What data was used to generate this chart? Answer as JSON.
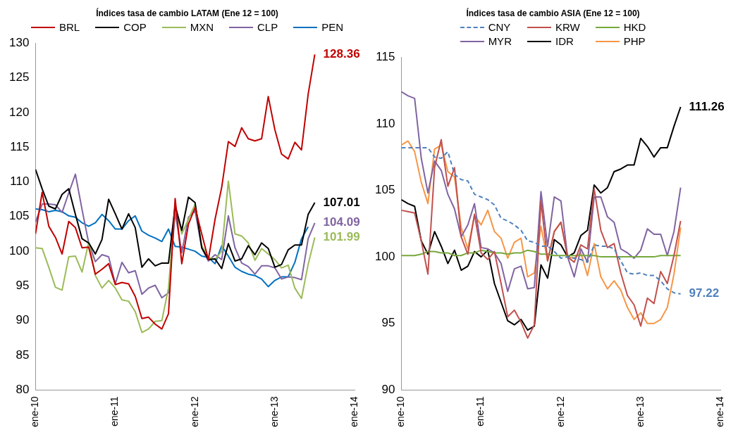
{
  "chart_data": [
    {
      "type": "line",
      "title": "Índices tasa de cambio LATAM (Ene 12 = 100)",
      "legend": "top",
      "marker": "none",
      "line_style": "solid",
      "grid": false,
      "x": [
        "2010-01",
        "2010-02",
        "2010-03",
        "2010-04",
        "2010-05",
        "2010-06",
        "2010-07",
        "2010-08",
        "2010-09",
        "2010-10",
        "2010-11",
        "2010-12",
        "2011-01",
        "2011-02",
        "2011-03",
        "2011-04",
        "2011-05",
        "2011-06",
        "2011-07",
        "2011-08",
        "2011-09",
        "2011-10",
        "2011-11",
        "2011-12",
        "2012-01",
        "2012-02",
        "2012-03",
        "2012-04",
        "2012-05",
        "2012-06",
        "2012-07",
        "2012-08",
        "2012-09",
        "2012-10",
        "2012-11",
        "2012-12",
        "2013-01",
        "2013-02",
        "2013-03",
        "2013-04",
        "2013-05",
        "2013-06",
        "2013-07"
      ],
      "xlim": [
        "2010-01",
        "2014-01"
      ],
      "xticks": [
        {
          "value": "2010-01",
          "label": "ene-10"
        },
        {
          "value": "2011-01",
          "label": "ene-11"
        },
        {
          "value": "2012-01",
          "label": "ene-12"
        },
        {
          "value": "2013-01",
          "label": "ene-13"
        },
        {
          "value": "2014-01",
          "label": "ene-14"
        }
      ],
      "ylim": [
        80,
        130
      ],
      "yticks": [
        80,
        85,
        90,
        95,
        100,
        105,
        110,
        115,
        120,
        125,
        130
      ],
      "series": [
        {
          "name": "BRL",
          "color": "#c00000",
          "values": [
            102.5,
            108.5,
            103.6,
            102,
            99.6,
            104.3,
            103.4,
            100.5,
            100.6,
            96.7,
            97.4,
            98.2,
            95.2,
            95.5,
            95.3,
            93.5,
            90.3,
            90.5,
            89.5,
            88.8,
            91,
            107.6,
            98.2,
            103.9,
            106.3,
            102.5,
            98.8,
            104.6,
            109.2,
            115.8,
            115.1,
            117.8,
            116.2,
            115.9,
            116.2,
            122.3,
            117.5,
            114,
            113.3,
            115.7,
            114.6,
            122.6,
            128.36
          ]
        },
        {
          "name": "COP",
          "color": "#000000",
          "values": [
            111.8,
            109,
            106.5,
            106.1,
            108.2,
            109,
            105.3,
            101.8,
            101.2,
            99.6,
            101.7,
            107.5,
            105.4,
            103.2,
            105.4,
            103.4,
            97.7,
            98.9,
            97.9,
            98.3,
            98.3,
            106.6,
            103,
            107.8,
            107,
            100.5,
            98.8,
            98.9,
            97.5,
            101.1,
            98.6,
            98.9,
            100.8,
            99.5,
            101.2,
            100.4,
            97.7,
            98.1,
            100.2,
            100.9,
            100.9,
            105.3,
            107.01
          ]
        },
        {
          "name": "MXN",
          "color": "#9bbb59",
          "values": [
            100.5,
            100.4,
            97.7,
            94.8,
            94.4,
            99.2,
            99.3,
            97,
            101.3,
            96.5,
            94.7,
            95.8,
            94.7,
            93,
            92.8,
            91.3,
            88.3,
            88.8,
            89.9,
            90,
            94.7,
            106.6,
            102.5,
            104.6,
            106.8,
            100.8,
            99.1,
            98.8,
            100,
            110.1,
            102.5,
            102.2,
            101.2,
            98.7,
            100.4,
            99.6,
            98.8,
            97.6,
            98,
            94.7,
            93.2,
            98.1,
            101.99
          ]
        },
        {
          "name": "CLP",
          "color": "#8064a2",
          "values": [
            104.2,
            106.8,
            106.8,
            106.7,
            105.6,
            108.4,
            111.1,
            106,
            101.2,
            98.5,
            99.5,
            99.2,
            95.3,
            98.4,
            96.9,
            97.2,
            93.8,
            94.7,
            95.1,
            93.3,
            94,
            105.6,
            99.8,
            104.9,
            105.8,
            100.5,
            98.6,
            99.5,
            98.8,
            105.1,
            100.5,
            98.3,
            97.8,
            96.7,
            97.9,
            97.9,
            97.6,
            96,
            96.3,
            96.2,
            95.9,
            101.8,
            104.09
          ]
        },
        {
          "name": "PEN",
          "color": "#0070c0",
          "values": [
            106.1,
            106,
            105.7,
            105.9,
            105.7,
            105.1,
            104.9,
            104.1,
            103.6,
            104.1,
            105.3,
            104.4,
            103.2,
            103.2,
            104.4,
            105.1,
            102.9,
            102.3,
            101.9,
            101.4,
            103.2,
            100.7,
            100.6,
            100.3,
            100,
            99.3,
            99.1,
            98.2,
            100.8,
            99.3,
            97.7,
            97.1,
            96.7,
            96.5,
            96,
            94.9,
            95.8,
            96.3,
            96.3,
            98.4,
            101.8,
            103.5,
            null
          ]
        }
      ],
      "annotations": [
        {
          "text": "128.36",
          "x": "2013-07",
          "y": 128.36
        },
        {
          "text": "107.01",
          "x": "2013-07",
          "y": 107.01
        },
        {
          "text": "104.09",
          "x": "2013-07",
          "y": 104.09
        },
        {
          "text": "101.99",
          "x": "2013-07",
          "y": 101.99
        }
      ]
    },
    {
      "type": "line",
      "title": "Índices tasa de cambio ASIA (Ene 12 = 100)",
      "legend": "top",
      "marker": "none",
      "line_style": "solid",
      "grid": false,
      "x": [
        "2010-01",
        "2010-02",
        "2010-03",
        "2010-04",
        "2010-05",
        "2010-06",
        "2010-07",
        "2010-08",
        "2010-09",
        "2010-10",
        "2010-11",
        "2010-12",
        "2011-01",
        "2011-02",
        "2011-03",
        "2011-04",
        "2011-05",
        "2011-06",
        "2011-07",
        "2011-08",
        "2011-09",
        "2011-10",
        "2011-11",
        "2011-12",
        "2012-01",
        "2012-02",
        "2012-03",
        "2012-04",
        "2012-05",
        "2012-06",
        "2012-07",
        "2012-08",
        "2012-09",
        "2012-10",
        "2012-11",
        "2012-12",
        "2013-01",
        "2013-02",
        "2013-03",
        "2013-04",
        "2013-05",
        "2013-06",
        "2013-07"
      ],
      "xlim": [
        "2010-01",
        "2014-01"
      ],
      "xticks": [
        {
          "value": "2010-01",
          "label": "ene-10"
        },
        {
          "value": "2011-01",
          "label": "ene-11"
        },
        {
          "value": "2012-01",
          "label": "ene-12"
        },
        {
          "value": "2013-01",
          "label": "ene-13"
        },
        {
          "value": "2014-01",
          "label": "ene-14"
        }
      ],
      "ylim": [
        90,
        115
      ],
      "yticks": [
        90,
        95,
        100,
        105,
        110,
        115
      ],
      "series": [
        {
          "name": "CNY",
          "color": "#4f81bd",
          "line_style": "dashed",
          "values": [
            108.2,
            108.2,
            108.2,
            108.2,
            108.2,
            107.5,
            107.4,
            107.9,
            106.2,
            105.8,
            105.7,
            104.7,
            104.5,
            104.3,
            103.9,
            102.9,
            102.7,
            102.4,
            102,
            101.2,
            101.1,
            100.8,
            100.8,
            100.4,
            99.9,
            100,
            99.9,
            99.8,
            99.6,
            100.9,
            100.8,
            100.8,
            100.6,
            99.7,
            98.8,
            98.7,
            98.8,
            98.6,
            98.6,
            98.2,
            97.6,
            97.3,
            97.22
          ]
        },
        {
          "name": "KRW",
          "color": "#c0504d",
          "values": [
            103.5,
            103.4,
            103.3,
            101.2,
            98.7,
            106.7,
            108.8,
            105.3,
            106.7,
            101.5,
            100.2,
            103.2,
            100.3,
            99.8,
            100.4,
            98,
            95.5,
            96,
            95.1,
            93.9,
            94.9,
            104.2,
            99.7,
            101.9,
            102.6,
            100,
            99.6,
            100.9,
            100.6,
            105.1,
            102,
            100.7,
            101,
            98.8,
            97.1,
            96.4,
            94.8,
            96.9,
            96.5,
            98.9,
            98,
            100.1,
            102.7
          ]
        },
        {
          "name": "HKD",
          "color": "#77a83c",
          "values": [
            100.1,
            100.1,
            100.1,
            100.2,
            100.4,
            100.4,
            100.3,
            100.3,
            100.1,
            100.1,
            100.3,
            100.3,
            100.5,
            100.4,
            100.3,
            100.3,
            100.2,
            100.3,
            100.3,
            100.5,
            100.4,
            100.2,
            100.2,
            100.1,
            100.1,
            100.1,
            100.1,
            100.1,
            100.1,
            100.1,
            100,
            100,
            100,
            100,
            100,
            100,
            100,
            100,
            100,
            100.1,
            100.1,
            100.1,
            100.1
          ]
        },
        {
          "name": "MYR",
          "color": "#8064a2",
          "values": [
            112.4,
            112.1,
            111.9,
            107.4,
            104.8,
            107.2,
            106.5,
            104.7,
            103.6,
            101.5,
            102.4,
            104,
            100.7,
            100.6,
            100.3,
            99.5,
            97.4,
            99.1,
            99.3,
            97.6,
            97.7,
            104.9,
            100.8,
            104.5,
            104.2,
            100,
            98.5,
            100.6,
            99.6,
            104.5,
            104.5,
            103,
            102.6,
            100.6,
            100.3,
            99.9,
            100.5,
            102.1,
            101.7,
            101.7,
            100.1,
            101.9,
            105.2
          ]
        },
        {
          "name": "IDR",
          "color": "#000000",
          "values": [
            104.3,
            104,
            103.8,
            101.2,
            100.2,
            101.9,
            100.8,
            99.5,
            100.5,
            99,
            99.3,
            100.4,
            100,
            100.5,
            98,
            96.6,
            95.2,
            94.9,
            95.3,
            94.5,
            94.8,
            99.4,
            98.4,
            101.3,
            100.9,
            100,
            100.3,
            101.6,
            102,
            105.4,
            104.8,
            105.2,
            106.4,
            106.6,
            106.9,
            106.9,
            108.9,
            108.3,
            107.5,
            108.2,
            108.2,
            109.8,
            111.26
          ]
        },
        {
          "name": "PHP",
          "color": "#f79646",
          "values": [
            108.4,
            108.7,
            107.9,
            105.6,
            104,
            108.1,
            108.4,
            106.4,
            106,
            102.2,
            100.6,
            103.1,
            102.4,
            103.5,
            101.9,
            101.4,
            99.9,
            101.1,
            101.4,
            98.5,
            98.8,
            102.3,
            99.7,
            101.9,
            102.6,
            100,
            99.9,
            100.3,
            98.6,
            101,
            98.5,
            97.6,
            98.2,
            97.5,
            96.2,
            95.3,
            95.8,
            95,
            95,
            95.3,
            96.2,
            98.7,
            102.2
          ]
        }
      ],
      "annotations": [
        {
          "text": "111.26",
          "x": "2013-07",
          "y": 111.26
        },
        {
          "text": "97.22",
          "x": "2013-07",
          "y": 97.22
        }
      ]
    }
  ]
}
